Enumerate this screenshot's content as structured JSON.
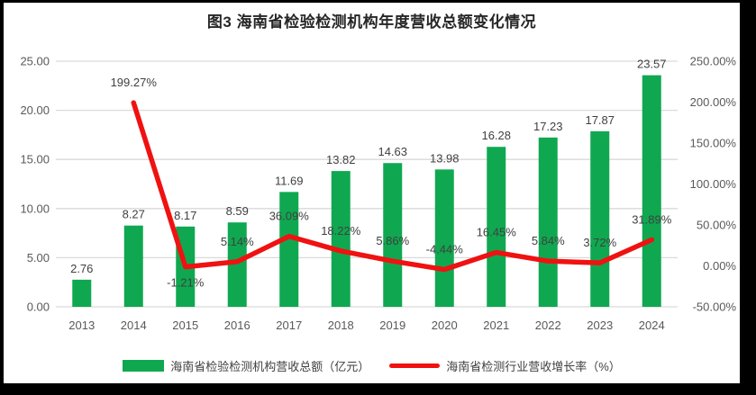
{
  "frame": {
    "background": "#000000",
    "panel_background": "#FFFFFF"
  },
  "chart_data": {
    "type": "bar+line",
    "title": "图3 海南省检验检测机构年度营收总额变化情况",
    "categories": [
      "2013",
      "2014",
      "2015",
      "2016",
      "2017",
      "2018",
      "2019",
      "2020",
      "2021",
      "2022",
      "2023",
      "2024"
    ],
    "series": [
      {
        "name": "海南省检验检测机构营收总额（亿元）",
        "type": "bar",
        "axis": "left",
        "color": "#0FA850",
        "values": [
          2.76,
          8.27,
          8.17,
          8.59,
          11.69,
          13.82,
          14.63,
          13.98,
          16.28,
          17.23,
          17.87,
          23.57
        ],
        "data_labels": [
          "2.76",
          "8.27",
          "8.17",
          "8.59",
          "11.69",
          "13.82",
          "14.63",
          "13.98",
          "16.28",
          "17.23",
          "17.87",
          "23.57"
        ]
      },
      {
        "name": "海南省检测行业营收增长率（%）",
        "type": "line",
        "axis": "right",
        "color": "#F01111",
        "values": [
          null,
          199.27,
          -1.21,
          5.14,
          36.09,
          18.22,
          5.86,
          -4.44,
          16.45,
          5.84,
          3.72,
          31.89
        ],
        "data_labels": [
          "",
          "199.27%",
          "-1.21%",
          "5.14%",
          "36.09%",
          "18.22%",
          "5.86%",
          "-4.44%",
          "16.45%",
          "5.84%",
          "3.72%",
          "31.89%"
        ],
        "label_positions": [
          "",
          "above",
          "below",
          "above",
          "above",
          "above",
          "above",
          "above",
          "above",
          "above",
          "above",
          "above"
        ]
      }
    ],
    "left_axis": {
      "min": 0,
      "max": 25,
      "step": 5,
      "tick_labels": [
        "0.00",
        "5.00",
        "10.00",
        "15.00",
        "20.00",
        "25.00"
      ]
    },
    "right_axis": {
      "min": -50,
      "max": 250,
      "step": 50,
      "tick_labels": [
        "-50.00%",
        "0.00%",
        "50.00%",
        "100.00%",
        "150.00%",
        "200.00%",
        "250.00%"
      ]
    },
    "grid": true,
    "legend_position": "bottom",
    "colors": {
      "gridline": "#DADADA",
      "axis_text": "#595959",
      "data_label_text": "#404040",
      "title_text": "#262626"
    }
  }
}
